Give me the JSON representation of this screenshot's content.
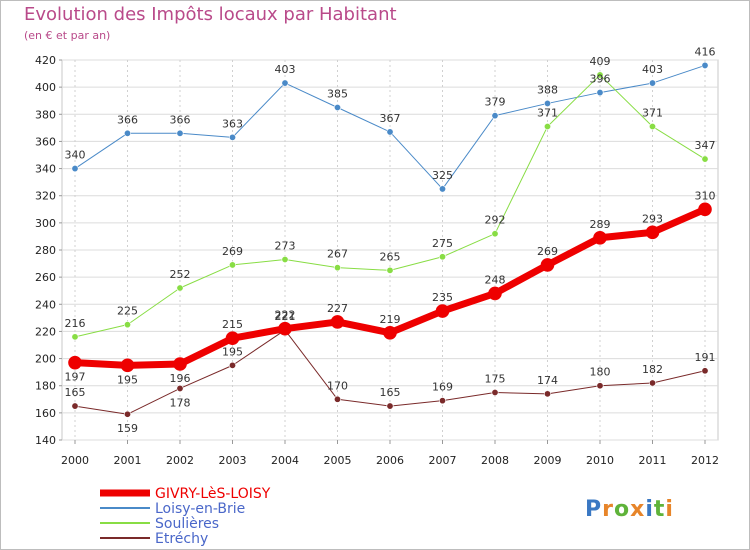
{
  "title": "Evolution des Impôts locaux par Habitant",
  "subtitle": "(en € et par an)",
  "logo": "Proxiti",
  "chart_data": {
    "type": "line",
    "x": [
      "2000",
      "2001",
      "2002",
      "2003",
      "2004",
      "2005",
      "2006",
      "2007",
      "2008",
      "2009",
      "2010",
      "2011",
      "2012"
    ],
    "ylim": [
      140,
      420
    ],
    "yticks": [
      140,
      160,
      180,
      200,
      220,
      240,
      260,
      280,
      300,
      320,
      340,
      360,
      380,
      400,
      420
    ],
    "grid": true,
    "legend": "bottom-left",
    "series": [
      {
        "name": "GIVRY-LèS-LOISY",
        "color": "#ee0000",
        "width": 7,
        "values": [
          197,
          195,
          196,
          215,
          222,
          227,
          219,
          235,
          248,
          269,
          289,
          293,
          310
        ]
      },
      {
        "name": "Loisy-en-Brie",
        "color": "#4a8ac8",
        "width": 1,
        "values": [
          340,
          366,
          366,
          363,
          403,
          385,
          367,
          325,
          379,
          388,
          396,
          403,
          416
        ]
      },
      {
        "name": "Soulières",
        "color": "#88dd44",
        "width": 1,
        "values": [
          216,
          225,
          252,
          269,
          273,
          267,
          265,
          275,
          292,
          371,
          409,
          371,
          347
        ]
      },
      {
        "name": "Etréchy",
        "color": "#7a2a2a",
        "width": 1,
        "values": [
          165,
          159,
          178,
          195,
          221,
          170,
          165,
          169,
          175,
          174,
          180,
          182,
          191
        ]
      }
    ]
  }
}
